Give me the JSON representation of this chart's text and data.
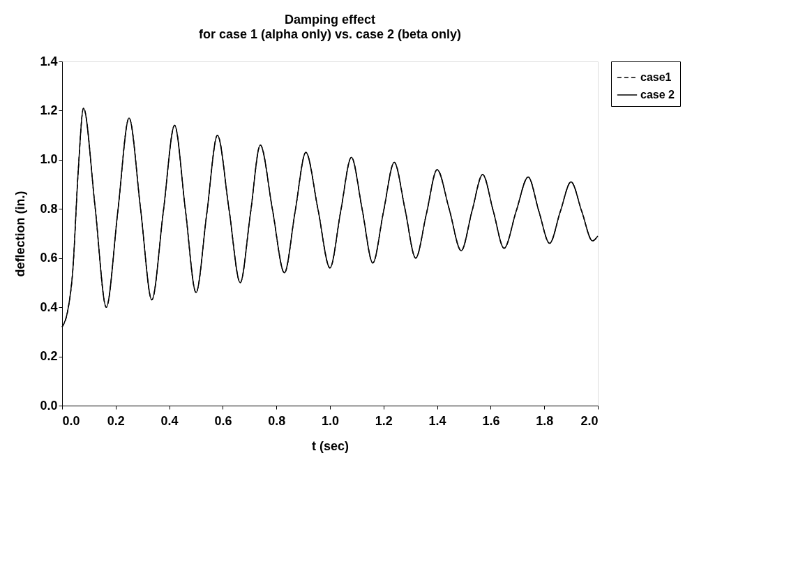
{
  "chart_data": {
    "type": "line",
    "title": "Damping effect",
    "subtitle": "for case 1 (alpha only) vs. case 2 (beta only)",
    "xlabel": "t (sec)",
    "ylabel": "deflection (in.)",
    "x": [
      0,
      0.02,
      0.04,
      0.06,
      0.08,
      0.123,
      0.165,
      0.208,
      0.25,
      0.293,
      0.335,
      0.378,
      0.42,
      0.46,
      0.5,
      0.54,
      0.58,
      0.623,
      0.665,
      0.703,
      0.74,
      0.785,
      0.83,
      0.87,
      0.91,
      0.955,
      1.0,
      1.04,
      1.08,
      1.12,
      1.16,
      1.2,
      1.24,
      1.28,
      1.32,
      1.36,
      1.4,
      1.445,
      1.49,
      1.53,
      1.57,
      1.61,
      1.65,
      1.695,
      1.74,
      1.78,
      1.82,
      1.86,
      1.9,
      1.94,
      1.98,
      2.0
    ],
    "series": [
      {
        "name": "case1",
        "color": "#000000",
        "line_style": "dashed",
        "values": [
          0.32,
          0.38,
          0.55,
          0.95,
          1.21,
          0.81,
          0.4,
          0.79,
          1.17,
          0.8,
          0.43,
          0.79,
          1.14,
          0.8,
          0.46,
          0.78,
          1.1,
          0.8,
          0.5,
          0.78,
          1.06,
          0.8,
          0.54,
          0.79,
          1.03,
          0.8,
          0.56,
          0.79,
          1.01,
          0.8,
          0.58,
          0.79,
          0.99,
          0.8,
          0.6,
          0.78,
          0.96,
          0.8,
          0.63,
          0.79,
          0.94,
          0.79,
          0.64,
          0.79,
          0.93,
          0.79,
          0.66,
          0.79,
          0.91,
          0.79,
          0.67,
          0.69
        ]
      },
      {
        "name": "case 2",
        "color": "#000000",
        "line_style": "solid",
        "values": [
          0.32,
          0.38,
          0.55,
          0.95,
          1.21,
          0.81,
          0.4,
          0.79,
          1.17,
          0.8,
          0.43,
          0.79,
          1.14,
          0.8,
          0.46,
          0.78,
          1.1,
          0.8,
          0.5,
          0.78,
          1.06,
          0.8,
          0.54,
          0.79,
          1.03,
          0.8,
          0.56,
          0.79,
          1.01,
          0.8,
          0.58,
          0.79,
          0.99,
          0.8,
          0.6,
          0.78,
          0.96,
          0.8,
          0.63,
          0.79,
          0.94,
          0.79,
          0.64,
          0.79,
          0.93,
          0.79,
          0.66,
          0.79,
          0.91,
          0.79,
          0.67,
          0.69
        ]
      }
    ],
    "xlim": [
      0,
      2
    ],
    "ylim": [
      0,
      1.4
    ],
    "xticks": [
      {
        "value": 0,
        "label": "0.0"
      },
      0.2,
      0.4,
      0.6,
      0.8,
      {
        "value": 1,
        "label": "1.0"
      },
      1.2,
      1.4,
      1.6,
      1.8,
      {
        "value": 2,
        "label": "2.0"
      }
    ],
    "yticks": [
      {
        "value": 0,
        "label": "0.0"
      },
      0.2,
      0.4,
      0.6,
      0.8,
      {
        "value": 1,
        "label": "1.0"
      },
      1.2,
      1.4
    ],
    "grid": false,
    "legend": "right",
    "marker": "none"
  }
}
